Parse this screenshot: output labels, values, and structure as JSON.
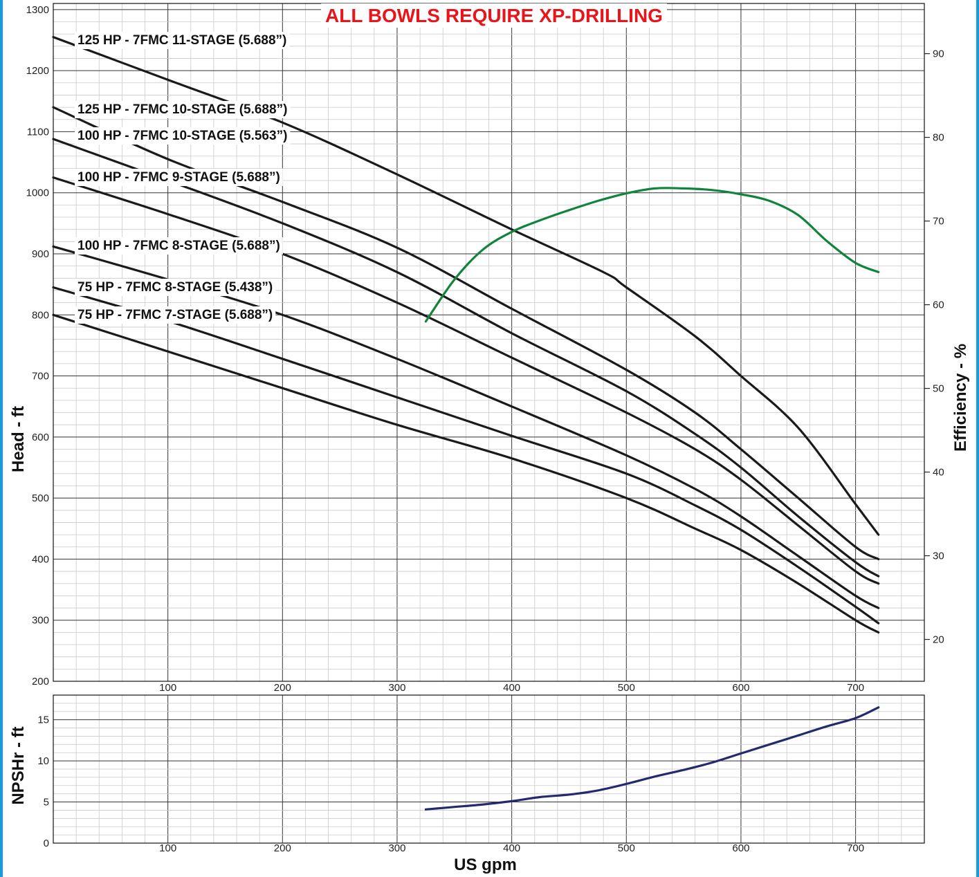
{
  "chart_data": [
    {
      "type": "line",
      "title": "ALL BOWLS REQUIRE XP-DRILLING",
      "title_color": "#e8151b",
      "xlabel": "",
      "ylabel": "Head - ft",
      "y2label": "Efficiency - %",
      "xlim": [
        0,
        760
      ],
      "ylim": [
        200,
        1310
      ],
      "y2lim": [
        15,
        96
      ],
      "x_ticks": [
        100,
        200,
        300,
        400,
        500,
        600,
        700
      ],
      "y_ticks": [
        200,
        300,
        400,
        500,
        600,
        700,
        800,
        900,
        1000,
        1100,
        1200,
        1300
      ],
      "y2_ticks": [
        20,
        30,
        40,
        50,
        60,
        70,
        80,
        90
      ],
      "grid": true,
      "series": [
        {
          "name": "125 HP - 7FMC 11-STAGE (5.688”)",
          "color": "#1a1a1a",
          "x": [
            0,
            100,
            200,
            300,
            400,
            480,
            500,
            560,
            600,
            650,
            700,
            720
          ],
          "y": [
            1255,
            1185,
            1115,
            1030,
            940,
            870,
            845,
            765,
            700,
            615,
            490,
            440
          ]
        },
        {
          "name": "125 HP - 7FMC 10-STAGE (5.688”)",
          "color": "#1a1a1a",
          "x": [
            0,
            100,
            200,
            300,
            400,
            500,
            560,
            600,
            650,
            700,
            720
          ],
          "y": [
            1140,
            1055,
            985,
            910,
            810,
            710,
            640,
            580,
            500,
            420,
            400
          ]
        },
        {
          "name": "100 HP - 7FMC 10-STAGE (5.563”)",
          "color": "#1a1a1a",
          "x": [
            0,
            100,
            200,
            300,
            400,
            500,
            560,
            600,
            650,
            700,
            720
          ],
          "y": [
            1088,
            1020,
            950,
            870,
            770,
            675,
            605,
            550,
            470,
            395,
            372
          ]
        },
        {
          "name": "100 HP - 7FMC 9-STAGE (5.688”)",
          "color": "#1a1a1a",
          "x": [
            0,
            100,
            200,
            300,
            400,
            500,
            560,
            600,
            650,
            700,
            720
          ],
          "y": [
            1025,
            965,
            900,
            820,
            730,
            640,
            580,
            530,
            455,
            380,
            360
          ]
        },
        {
          "name": "100 HP - 7FMC 8-STAGE (5.688”)",
          "color": "#1a1a1a",
          "x": [
            0,
            100,
            200,
            300,
            400,
            500,
            560,
            600,
            650,
            700,
            720
          ],
          "y": [
            912,
            858,
            800,
            728,
            650,
            570,
            515,
            470,
            405,
            340,
            320
          ]
        },
        {
          "name": "75 HP - 7FMC 8-STAGE (5.438”)",
          "color": "#1a1a1a",
          "x": [
            0,
            100,
            200,
            300,
            400,
            500,
            560,
            600,
            650,
            700,
            720
          ],
          "y": [
            845,
            790,
            728,
            665,
            602,
            540,
            488,
            448,
            387,
            322,
            295
          ]
        },
        {
          "name": "75 HP - 7FMC 7-STAGE (5.688”)",
          "color": "#1a1a1a",
          "x": [
            0,
            100,
            200,
            300,
            400,
            500,
            560,
            600,
            650,
            700,
            720
          ],
          "y": [
            800,
            740,
            680,
            620,
            565,
            500,
            450,
            415,
            360,
            300,
            280
          ]
        },
        {
          "color": "#12833c",
          "axis": "right",
          "x": [
            325,
            350,
            375,
            400,
            425,
            450,
            475,
            500,
            525,
            550,
            575,
            600,
            625,
            650,
            675,
            700,
            720
          ],
          "y": [
            58,
            63,
            66.6,
            68.7,
            70.1,
            71.3,
            72.4,
            73.3,
            73.9,
            73.9,
            73.7,
            73.2,
            72.4,
            70.7,
            67.6,
            65,
            63.9
          ]
        }
      ]
    },
    {
      "type": "line",
      "title": "",
      "xlabel": "US gpm",
      "ylabel": "NPSHr - ft",
      "xlim": [
        0,
        760
      ],
      "ylim": [
        0,
        18
      ],
      "x_ticks": [
        100,
        200,
        300,
        400,
        500,
        600,
        700
      ],
      "y_ticks": [
        0,
        5,
        10,
        15
      ],
      "grid": true,
      "series": [
        {
          "color": "#232a6e",
          "x": [
            325,
            350,
            375,
            400,
            425,
            450,
            475,
            500,
            525,
            550,
            575,
            600,
            625,
            650,
            675,
            700,
            720
          ],
          "y": [
            4.1,
            4.4,
            4.7,
            5.1,
            5.6,
            5.9,
            6.4,
            7.2,
            8.1,
            8.9,
            9.8,
            10.9,
            12.0,
            13.1,
            14.2,
            15.2,
            16.5
          ]
        }
      ]
    }
  ]
}
